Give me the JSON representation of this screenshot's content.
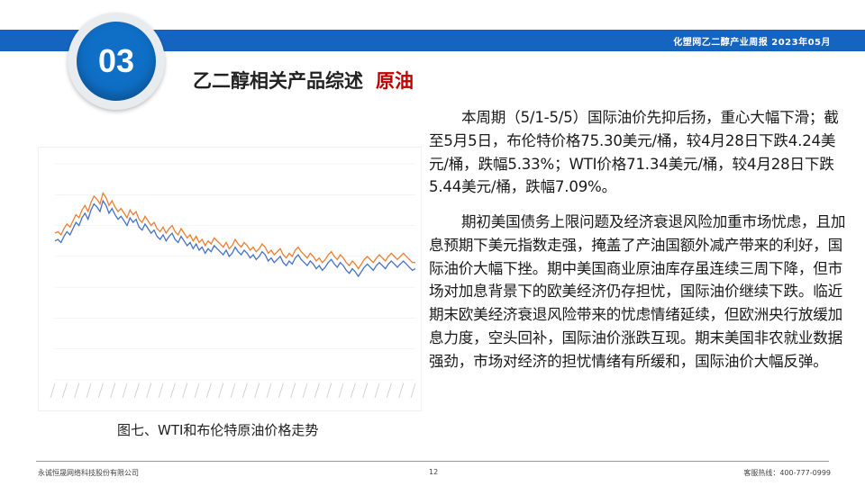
{
  "header": {
    "banner_text": "化塑网乙二醇产业周报   2023年05月",
    "section_number": "03",
    "title": "乙二醇相关产品综述",
    "title_accent": "原油",
    "colors": {
      "banner": "#1565c0",
      "accent": "#c00000"
    }
  },
  "paragraphs": [
    "本周期（5/1-5/5）国际油价先抑后扬，重心大幅下滑；截至5月5日，布伦特价格75.30美元/桶，较4月28日下跌4.24美元/桶，跌幅5.33%；WTI价格71.34美元/桶，较4月28日下跌5.44美元/桶，跌幅7.09%。",
    "期初美国债务上限问题及经济衰退风险加重市场忧虑，且加息预期下美元指数走强，掩盖了产油国额外减产带来的利好，国际油价大幅下挫。期中美国商业原油库存虽连续三周下降，但市场对加息背景下的欧美经济仍存担忧，国际油价继续下跌。临近期末欧美经济衰退风险带来的忧虑情绪延续，但欧洲央行放缓加息力度，空头回补，国际油价涨跌互现。期末美国非农就业数据强劲，市场对经济的担忧情绪有所缓和，国际油价大幅反弹。"
  ],
  "figure": {
    "caption": "图七、WTI和布伦特原油价格走势"
  },
  "chart_data": {
    "type": "line",
    "x_points": 121,
    "ylim": [
      0,
      140
    ],
    "series": [
      {
        "color": "#4472c4",
        "values": [
          90,
          91,
          89,
          93,
          96,
          94,
          98,
          102,
          100,
          105,
          108,
          104,
          110,
          114,
          112,
          109,
          116,
          113,
          108,
          111,
          107,
          104,
          106,
          103,
          100,
          105,
          102,
          104,
          99,
          97,
          101,
          98,
          95,
          97,
          93,
          91,
          94,
          90,
          93,
          95,
          91,
          89,
          93,
          90,
          87,
          89,
          85,
          88,
          84,
          86,
          82,
          85,
          83,
          87,
          85,
          83,
          81,
          84,
          80,
          82,
          86,
          83,
          81,
          84,
          82,
          79,
          81,
          78,
          80,
          83,
          81,
          77,
          79,
          76,
          78,
          80,
          76,
          74,
          77,
          75,
          79,
          81,
          78,
          76,
          74,
          77,
          75,
          72,
          74,
          71,
          73,
          76,
          78,
          75,
          73,
          76,
          74,
          71,
          69,
          72,
          70,
          67,
          70,
          73,
          75,
          73,
          71,
          74,
          76,
          74,
          72,
          75,
          77,
          75,
          73,
          75,
          77,
          75,
          73,
          71,
          72
        ]
      },
      {
        "color": "#ed7d31",
        "values": [
          95,
          96,
          94,
          98,
          101,
          99,
          103,
          107,
          105,
          110,
          113,
          109,
          115,
          119,
          117,
          114,
          121,
          118,
          113,
          116,
          112,
          109,
          111,
          108,
          105,
          110,
          107,
          109,
          104,
          102,
          106,
          103,
          100,
          102,
          98,
          96,
          99,
          95,
          98,
          100,
          96,
          94,
          98,
          95,
          92,
          94,
          90,
          93,
          89,
          91,
          87,
          90,
          88,
          92,
          90,
          88,
          86,
          89,
          85,
          87,
          91,
          88,
          86,
          89,
          87,
          84,
          86,
          83,
          85,
          88,
          86,
          82,
          84,
          81,
          83,
          85,
          81,
          79,
          82,
          80,
          84,
          86,
          83,
          81,
          79,
          82,
          80,
          77,
          79,
          76,
          78,
          81,
          83,
          80,
          78,
          81,
          79,
          76,
          74,
          77,
          75,
          72,
          75,
          78,
          80,
          78,
          76,
          79,
          81,
          79,
          77,
          80,
          82,
          80,
          78,
          80,
          82,
          80,
          78,
          76,
          76
        ]
      }
    ]
  },
  "footer": {
    "company": "永诚恒晟网络科技股份有限公司",
    "page_number": "12",
    "hotline": "客服热线：400-777-0999"
  }
}
